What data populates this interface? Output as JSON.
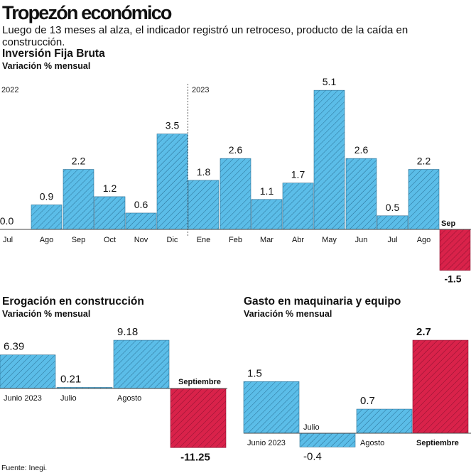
{
  "header": {
    "title": "Tropezón económico",
    "subtitle": "Luego de 13 meses al alza, el indicador registró un retroceso, producto de la caída en construcción."
  },
  "colors": {
    "positive": "#5bbde8",
    "negative": "#d9224a",
    "hatch_pos": "#2a6f94",
    "hatch_neg": "#8a1230",
    "axis": "#444444"
  },
  "chart_data": [
    {
      "id": "inversion",
      "type": "bar",
      "title": "Inversión Fija Bruta",
      "ylabel": "Variación % mensual",
      "year_labels": [
        "2022",
        "2023"
      ],
      "categories": [
        "Jul",
        "Ago",
        "Sep",
        "Oct",
        "Nov",
        "Dic",
        "Ene",
        "Feb",
        "Mar",
        "Abr",
        "May",
        "Jun",
        "Jul",
        "Ago",
        "Sep"
      ],
      "values": [
        0.0,
        0.9,
        2.2,
        1.2,
        0.6,
        3.5,
        1.8,
        2.6,
        1.1,
        1.7,
        5.1,
        2.6,
        0.5,
        2.2,
        -1.5
      ],
      "value_labels": [
        "0.0",
        "0.9",
        "2.2",
        "1.2",
        "0.6",
        "3.5",
        "1.8",
        "2.6",
        "1.1",
        "1.7",
        "5.1",
        "2.6",
        "0.5",
        "2.2",
        "-1.5"
      ],
      "ylim": [
        -1.5,
        5.1
      ]
    },
    {
      "id": "construccion",
      "type": "bar",
      "title": "Erogación en construcción",
      "ylabel": "Variación % mensual",
      "categories": [
        "Junio 2023",
        "Julio",
        "Agosto",
        "Septiembre"
      ],
      "values": [
        6.39,
        0.21,
        9.18,
        -11.25
      ],
      "value_labels": [
        "6.39",
        "0.21",
        "9.18",
        "-11.25"
      ],
      "ylim": [
        -11.25,
        9.18
      ]
    },
    {
      "id": "maquinaria",
      "type": "bar",
      "title": "Gasto en maquinaria y equipo",
      "ylabel": "Variación % mensual",
      "categories": [
        "Junio 2023",
        "Julio",
        "Agosto",
        "Septiembre"
      ],
      "values": [
        1.5,
        -0.4,
        0.7,
        2.7
      ],
      "value_labels": [
        "1.5",
        "-0.4",
        "0.7",
        "2.7"
      ],
      "ylim": [
        -0.4,
        2.7
      ]
    }
  ],
  "footer": {
    "source": "Fuente: Inegi."
  }
}
